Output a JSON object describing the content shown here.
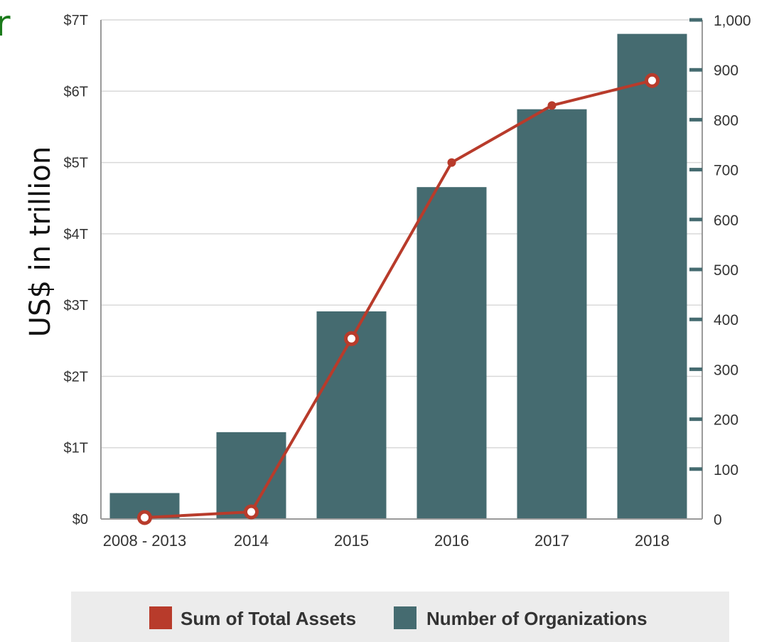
{
  "corner_text": "r",
  "chart_data": {
    "type": "bar",
    "categories": [
      "2008 - 2013",
      "2014",
      "2015",
      "2016",
      "2017",
      "2018"
    ],
    "ylabel": "US$ in trillion",
    "left_axis": {
      "ticks": [
        "$0",
        "$1T",
        "$2T",
        "$3T",
        "$4T",
        "$5T",
        "$6T",
        "$7T"
      ],
      "range": [
        0,
        7
      ]
    },
    "right_axis": {
      "ticks": [
        "0",
        "100",
        "200",
        "300",
        "400",
        "500",
        "600",
        "700",
        "800",
        "900",
        "1,000"
      ],
      "range": [
        0,
        1000
      ]
    },
    "grid": true,
    "legend": {
      "placement": "bottom"
    },
    "series": [
      {
        "name": "Number of Organizations",
        "type": "bar",
        "axis": "right",
        "color": "#456b70",
        "values": [
          52,
          174,
          416,
          665,
          821,
          972
        ]
      },
      {
        "name": "Sum of Total Assets",
        "type": "line",
        "axis": "left",
        "color": "#b83b2b",
        "values": [
          0.02,
          0.1,
          2.53,
          5.0,
          5.8,
          6.15
        ]
      }
    ]
  }
}
